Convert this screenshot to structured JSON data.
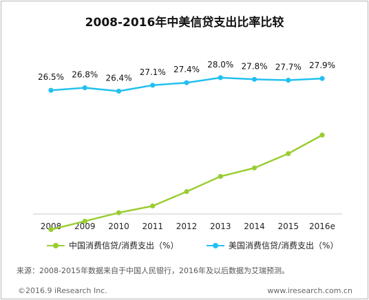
{
  "chart_data": {
    "type": "line",
    "title": "2008-2016年中美信贷支出比率比较",
    "categories": [
      "2008",
      "2009",
      "2010",
      "2011",
      "2012",
      "2013",
      "2014",
      "2015",
      "2016e"
    ],
    "series": [
      {
        "name": "中国消费信贷/消费支出（%）",
        "color": "#9acd32",
        "values": [
          10.0,
          11.0,
          12.0,
          12.8,
          14.5,
          16.3,
          17.3,
          19.0,
          21.2
        ],
        "labels_shown": false
      },
      {
        "name": "美国消费信贷/消费支出（%）",
        "color": "#22c0f0",
        "values": [
          26.5,
          26.8,
          26.4,
          27.1,
          27.4,
          28.0,
          27.8,
          27.7,
          27.9
        ],
        "value_labels": [
          "26.5%",
          "26.8%",
          "26.4%",
          "27.1%",
          "27.4%",
          "28.0%",
          "27.8%",
          "27.7%",
          "27.9%"
        ],
        "labels_shown": true
      }
    ],
    "grid": false,
    "legend_position": "bottom"
  },
  "source_note": "来源：2008-2015年数据来自于中国人民银行，2016年及以后数据为艾瑞预测。",
  "copyright": "©2016.9 iResearch Inc.",
  "website": "www.iresearch.com.cn"
}
